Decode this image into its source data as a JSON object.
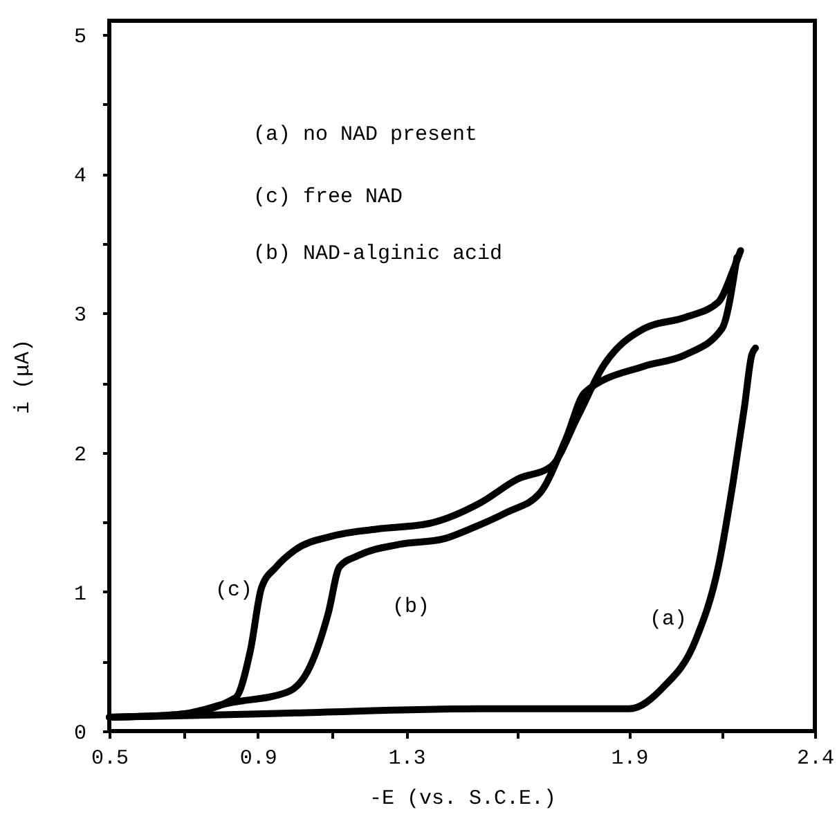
{
  "chart_data": {
    "type": "line",
    "xlabel": "-E (vs. S.C.E.)",
    "ylabel": "i (μA)",
    "xlim": [
      0.5,
      2.4
    ],
    "ylim": [
      0,
      5.1
    ],
    "xticks": [
      0.5,
      {
        "value": 0.7,
        "label": null
      },
      0.9,
      {
        "value": 1.1,
        "label": null
      },
      1.3,
      {
        "value": 1.6,
        "label": null
      },
      1.9,
      {
        "value": 2.15,
        "label": null
      },
      2.4
    ],
    "yticks": [
      0,
      {
        "value": 0.5,
        "label": null
      },
      1,
      {
        "value": 1.5,
        "label": null
      },
      2,
      {
        "value": 2.5,
        "label": null
      },
      3,
      {
        "value": 3.5,
        "label": null
      },
      4,
      {
        "value": 4.5,
        "label": null
      },
      5
    ],
    "line_style": "solid",
    "annotations": [
      "(a) no NAD present",
      "(c) free NAD",
      "(b) NAD-alginic acid",
      "(c)",
      "(b)",
      "(a)"
    ],
    "series": [
      {
        "color": "#000000",
        "x": [
          0.5,
          0.7,
          1.0,
          1.5,
          1.9,
          1.99,
          2.08,
          2.14,
          2.18,
          2.21,
          2.23,
          2.24
        ],
        "values": [
          0.1,
          0.11,
          0.13,
          0.16,
          0.16,
          0.31,
          0.66,
          1.18,
          1.79,
          2.32,
          2.7,
          2.75
        ]
      },
      {
        "color": "#000000",
        "x": [
          0.5,
          0.69,
          0.84,
          0.88,
          0.91,
          0.95,
          1.0,
          1.1,
          1.22,
          1.36,
          1.5,
          1.6,
          1.69,
          1.76,
          1.83,
          1.94,
          2.05,
          2.14,
          2.18,
          2.2
        ],
        "values": [
          0.1,
          0.12,
          0.24,
          0.58,
          1.03,
          1.18,
          1.3,
          1.4,
          1.45,
          1.49,
          1.64,
          1.81,
          1.9,
          2.25,
          2.62,
          2.89,
          2.97,
          3.08,
          3.31,
          3.45
        ]
      },
      {
        "color": "#000000",
        "x": [
          0.5,
          0.69,
          0.82,
          0.98,
          1.04,
          1.09,
          1.12,
          1.17,
          1.28,
          1.4,
          1.47,
          1.57,
          1.66,
          1.73,
          1.78,
          1.94,
          2.05,
          2.15,
          2.19
        ],
        "values": [
          0.1,
          0.12,
          0.2,
          0.28,
          0.46,
          0.85,
          1.18,
          1.26,
          1.34,
          1.38,
          1.45,
          1.57,
          1.71,
          2.1,
          2.43,
          2.62,
          2.7,
          2.89,
          3.4
        ]
      }
    ]
  }
}
